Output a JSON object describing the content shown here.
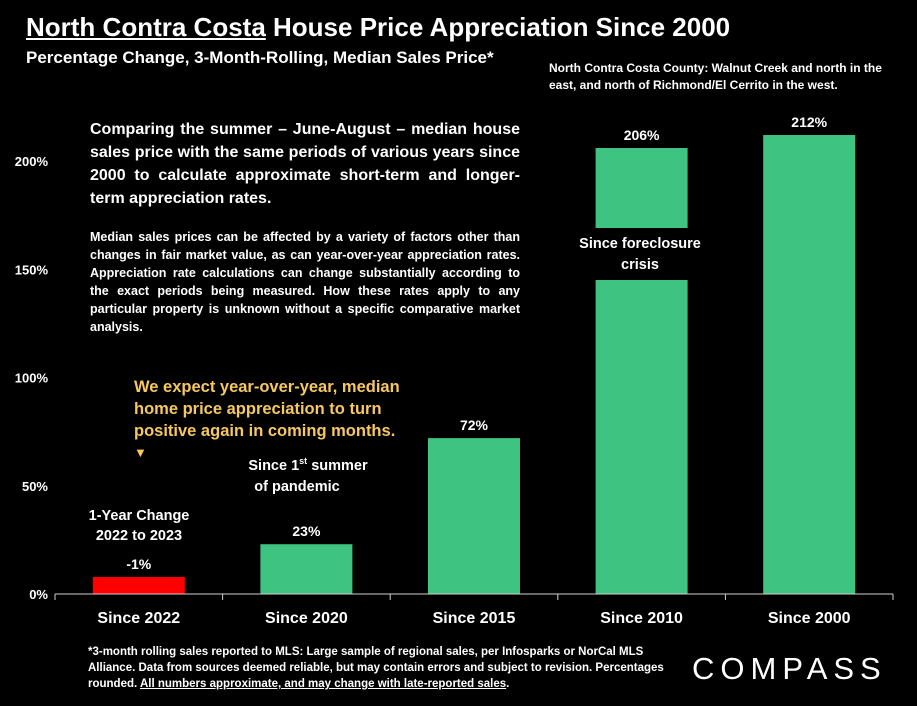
{
  "header": {
    "title_region": "North Contra Costa",
    "title_rest": " House Price Appreciation Since 2000",
    "subtitle": "Percentage Change, 3-Month-Rolling, Median Sales Price*",
    "region_note": "North Contra Costa County: Walnut Creek and north in the east, and north of Richmond/El Cerrito in the west."
  },
  "notes": {
    "para1": "Comparing the summer – June-August – median house sales price with the same periods of various years since 2000 to calculate approximate short-term and longer-term appreciation rates.",
    "para2": "Median sales prices can be affected by a variety of factors other than changes in fair market value, as can year-over-year appreciation rates. Appreciation rate calculations can change substantially according to the exact periods being measured. How these rates apply to any particular property is unknown without a specific comparative market analysis.",
    "expect": "We expect year-over-year, median home price appreciation to turn positive again in coming months.",
    "expect_arrow": "▼"
  },
  "footer": {
    "text": "*3-month rolling sales reported to MLS:  Large sample of regional sales, per Infosparks or NorCal MLS Alliance. Data from sources deemed reliable, but may contain errors and subject to revision. Percentages rounded. ",
    "underlined": "All numbers approximate, and may change with late-reported sales",
    "end": "."
  },
  "logo": "COMPASS",
  "chart_data": {
    "type": "bar",
    "categories": [
      "Since 2022",
      "Since 2020",
      "Since 2015",
      "Since 2010",
      "Since 2000"
    ],
    "values": [
      -1,
      23,
      72,
      206,
      212
    ],
    "data_labels": [
      "-1%",
      "23%",
      "72%",
      "206%",
      "212%"
    ],
    "bar_colors": [
      "#ff0000",
      "#3fc381",
      "#3fc381",
      "#3fc381",
      "#3fc381"
    ],
    "ylim": [
      0,
      220
    ],
    "yticks": [
      0,
      50,
      100,
      150,
      200
    ],
    "ytick_labels": [
      "0%",
      "50%",
      "100%",
      "150%",
      "200%"
    ],
    "annotations": {
      "since_2022_line1": "1-Year Change",
      "since_2022_line2": "2022 to 2023",
      "since_2020_line1_pre": "Since 1",
      "since_2020_line1_sup": "st",
      "since_2020_line1_post": " summer",
      "since_2020_line2": "of pandemic",
      "since_2010_line1": "Since foreclosure",
      "since_2010_line2": "crisis"
    },
    "grid": false,
    "legend": "none"
  }
}
